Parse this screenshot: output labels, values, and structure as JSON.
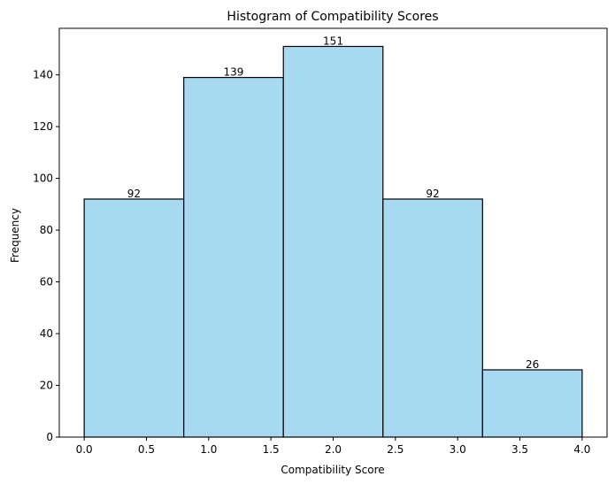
{
  "chart_data": {
    "type": "bar",
    "title": "Histogram of Compatibility Scores",
    "xlabel": "Compatibility Score",
    "ylabel": "Frequency",
    "bins": [
      {
        "start": 0.0,
        "end": 0.8,
        "value": 92,
        "label": "92"
      },
      {
        "start": 0.8,
        "end": 1.6,
        "value": 139,
        "label": "139"
      },
      {
        "start": 1.6,
        "end": 2.4,
        "value": 151,
        "label": "151"
      },
      {
        "start": 2.4,
        "end": 3.2,
        "value": 92,
        "label": "92"
      },
      {
        "start": 3.2,
        "end": 4.0,
        "value": 26,
        "label": "26"
      }
    ],
    "xlim": [
      -0.2,
      4.2
    ],
    "ylim": [
      0,
      158
    ],
    "xticks": [
      0.0,
      0.5,
      1.0,
      1.5,
      2.0,
      2.5,
      3.0,
      3.5,
      4.0
    ],
    "xtick_labels": [
      "0.0",
      "0.5",
      "1.0",
      "1.5",
      "2.0",
      "2.5",
      "3.0",
      "3.5",
      "4.0"
    ],
    "yticks": [
      0,
      20,
      40,
      60,
      80,
      100,
      120,
      140
    ],
    "ytick_labels": [
      "0",
      "20",
      "40",
      "60",
      "80",
      "100",
      "120",
      "140"
    ],
    "grid": false,
    "bar_color": "#a7d9f0",
    "edge_color": "#000000"
  }
}
